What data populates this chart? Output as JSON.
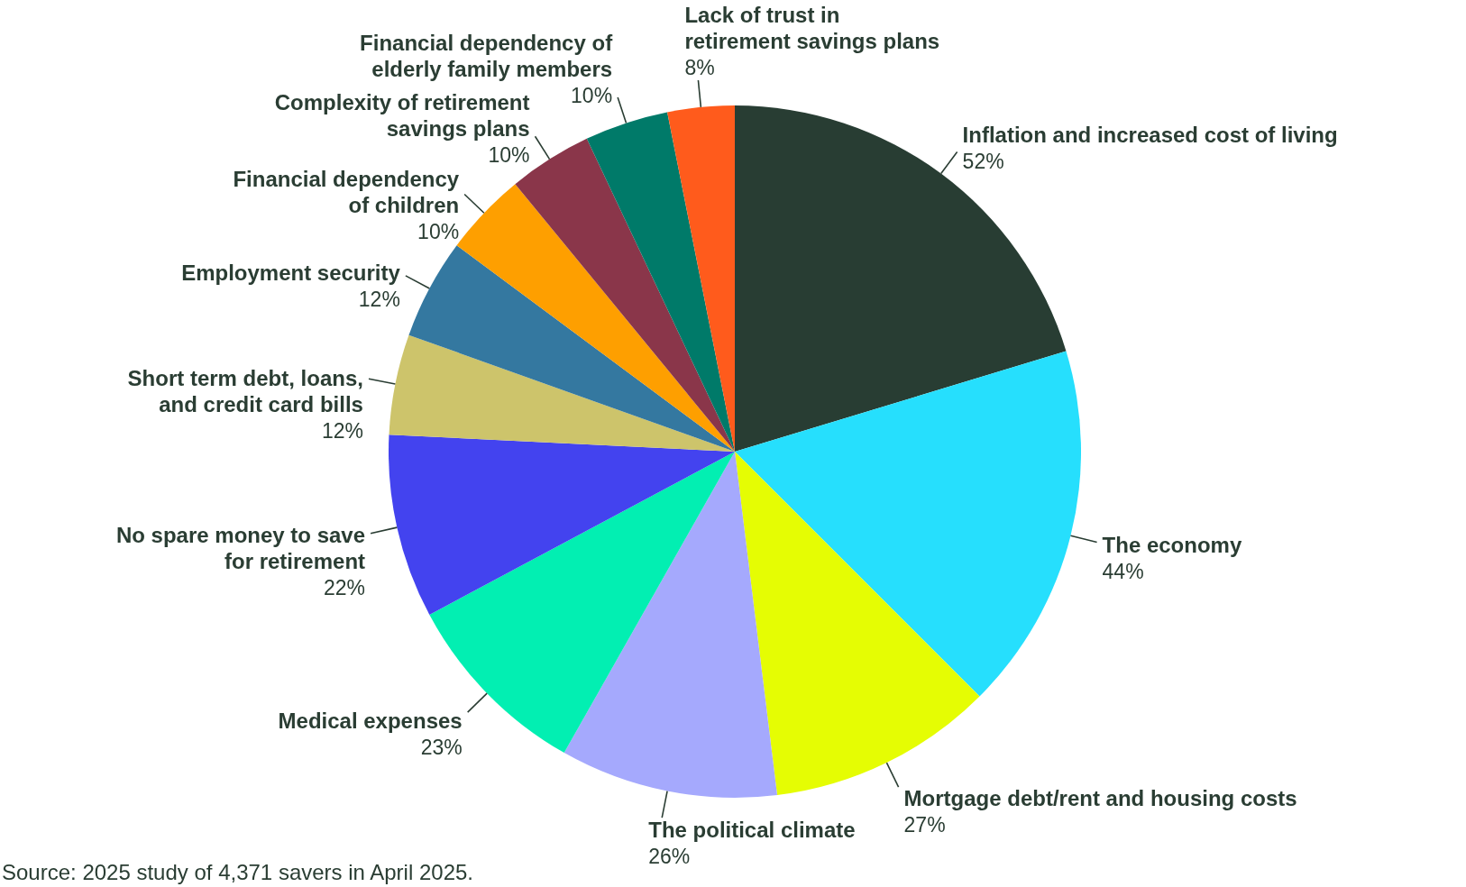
{
  "chart_data": {
    "type": "pie",
    "categories": [
      "Inflation and increased cost of living",
      "The economy",
      "Mortgage debt/rent and housing costs",
      "The political climate",
      "Medical expenses",
      "No spare money to save\nfor retirement",
      "Short term debt, loans,\nand credit card bills",
      "Employment security",
      "Financial dependency\nof children",
      "Complexity of retirement\nsavings plans",
      "Financial dependency of\nelderly family members",
      "Lack of trust in\nretirement savings plans"
    ],
    "values": [
      52,
      44,
      27,
      26,
      23,
      22,
      12,
      12,
      10,
      10,
      10,
      8
    ],
    "value_labels": [
      "52%",
      "44%",
      "27%",
      "26%",
      "23%",
      "22%",
      "12%",
      "12%",
      "10%",
      "10%",
      "10%",
      "8%"
    ],
    "colors": [
      "#283d33",
      "#26dffd",
      "#e5fd03",
      "#a5a9fd",
      "#02efb2",
      "#4343ef",
      "#cdc46b",
      "#3478a0",
      "#fe9f00",
      "#8a364a",
      "#007a69",
      "#ff5b1c"
    ],
    "annotations": [
      "Source: 2025 study of 4,371 savers in April 2025."
    ]
  }
}
